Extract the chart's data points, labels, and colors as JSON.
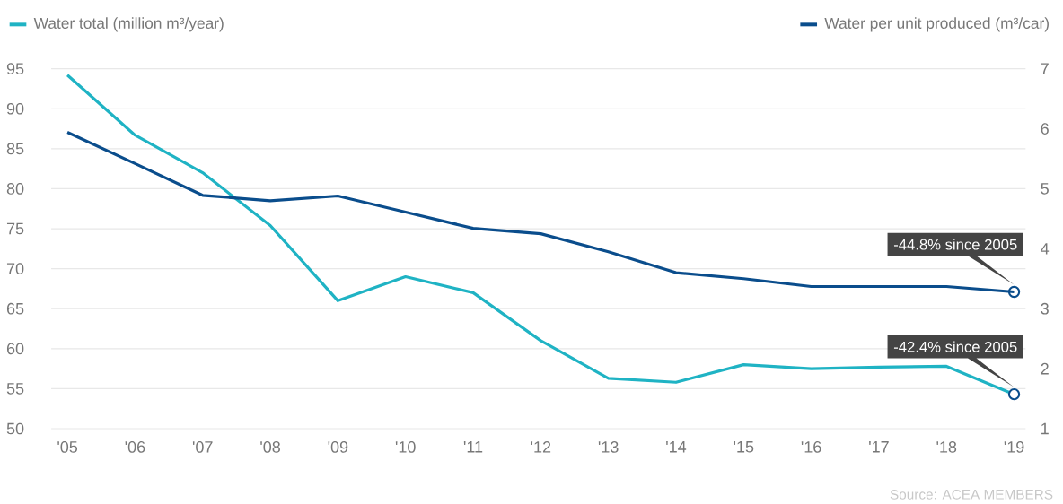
{
  "chart_data": {
    "type": "line",
    "categories": [
      "'05",
      "'06",
      "'07",
      "'08",
      "'09",
      "'10",
      "'11",
      "'12",
      "'13",
      "'14",
      "'15",
      "'16",
      "'17",
      "'18",
      "'19"
    ],
    "series": [
      {
        "name": "Water total (million m³/year)",
        "color": "#1fb3c4",
        "values": [
          94.2,
          86.7,
          82.0,
          75.4,
          66.0,
          69.0,
          67.0,
          61.0,
          56.3,
          55.8,
          58.0,
          57.5,
          57.7,
          57.8,
          54.3
        ]
      },
      {
        "name": "Water per unit produced (m³/car)",
        "color": "#0a4d8c",
        "axis": "y2",
        "values": [
          5.94,
          5.42,
          4.89,
          4.8,
          4.88,
          4.61,
          4.34,
          4.25,
          3.95,
          3.6,
          3.5,
          3.37,
          3.37,
          3.37,
          3.28
        ]
      }
    ],
    "ylim": [
      50,
      95
    ],
    "yticks": [
      50,
      55,
      60,
      65,
      70,
      75,
      80,
      85,
      90,
      95
    ],
    "y2lim": [
      1,
      7
    ],
    "y2ticks": [
      1,
      2,
      3,
      4,
      5,
      6,
      7
    ],
    "grid": "y",
    "legend": "top",
    "marker": "none",
    "line_style": "solid",
    "annotations": [
      {
        "text": "-44.8% since 2005",
        "x": "'19",
        "y": 67.1
      },
      {
        "text": "-42.4% since 2005",
        "x": "'19",
        "y": 54.3
      },
      "Source: ACEA MEMBERS"
    ]
  }
}
